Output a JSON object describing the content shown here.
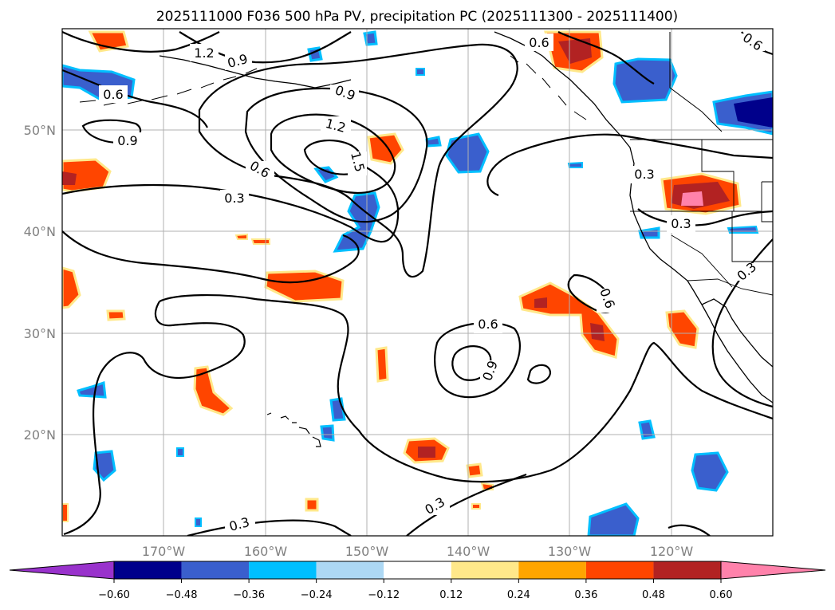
{
  "title": "2025111000 F036 500 hPa PV, precipitation PC (2025111300 - 2025111400)",
  "axes": {
    "lon_labels": [
      "170°W",
      "160°W",
      "150°W",
      "140°W",
      "130°W",
      "120°W"
    ],
    "lat_labels": [
      "50°N",
      "40°N",
      "30°N",
      "20°N"
    ]
  },
  "contour_labels": [
    "1.2",
    "0.9",
    "0.6",
    "0.6",
    "0.6",
    "0.9",
    "1.2",
    "1.5",
    "0.9",
    "0.6",
    "0.3",
    "0.3",
    "0.3",
    "0.3",
    "0.6",
    "0.6",
    "0.9",
    "0.3",
    "0.3"
  ],
  "colorbar": {
    "ticks": [
      "−0.60",
      "−0.48",
      "−0.36",
      "−0.24",
      "−0.12",
      "0.12",
      "0.24",
      "0.36",
      "0.48",
      "0.60"
    ],
    "colors": [
      "#9932cc",
      "#00008b",
      "#3a5fcd",
      "#00bfff",
      "#add8f4",
      "#ffffff",
      "#ffe88a",
      "#ffa500",
      "#ff4500",
      "#b22222",
      "#ff82ab"
    ]
  },
  "colors": {
    "contour": "#000000",
    "grid": "#b0b0b0",
    "coast": "#000000"
  }
}
